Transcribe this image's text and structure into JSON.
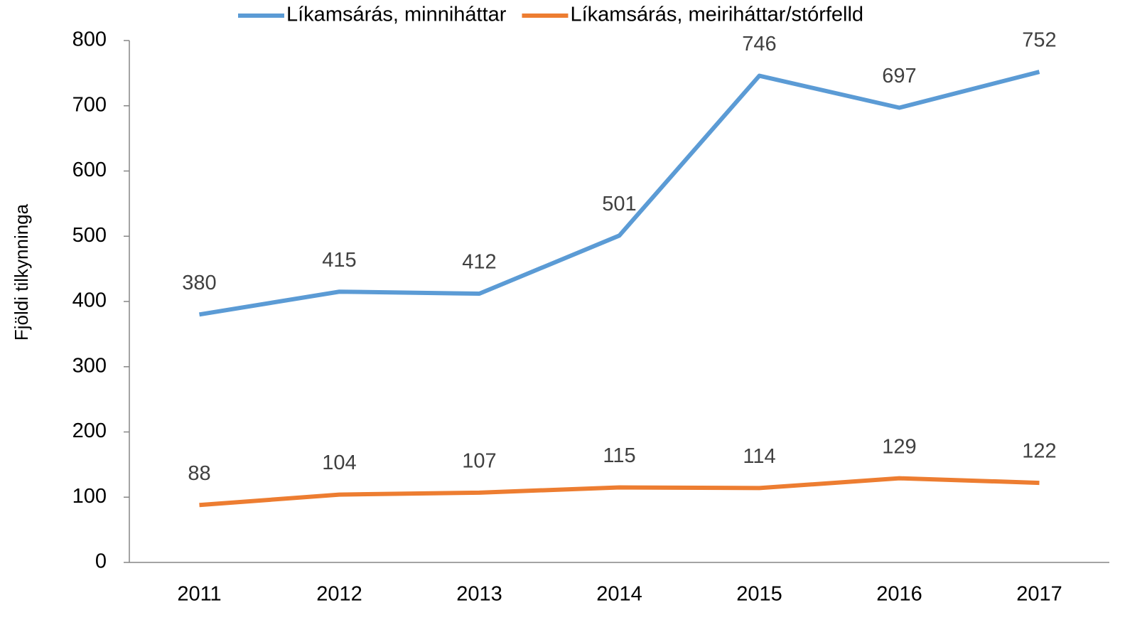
{
  "chart_data": {
    "type": "line",
    "y_label": "Fjöldi tilkynninga",
    "categories": [
      "2011",
      "2012",
      "2013",
      "2014",
      "2015",
      "2016",
      "2017"
    ],
    "series": [
      {
        "name": "Líkamsárás, minniháttar",
        "color": "#5b9bd5",
        "values": [
          380,
          415,
          412,
          501,
          746,
          697,
          752
        ]
      },
      {
        "name": "Líkamsárás, meiriháttar/stórfelld",
        "color": "#ed7d31",
        "values": [
          88,
          104,
          107,
          115,
          114,
          129,
          122
        ]
      }
    ],
    "ylim": [
      0,
      800
    ],
    "yticks": [
      0,
      100,
      200,
      300,
      400,
      500,
      600,
      700,
      800
    ],
    "grid": false,
    "legend": "top"
  }
}
